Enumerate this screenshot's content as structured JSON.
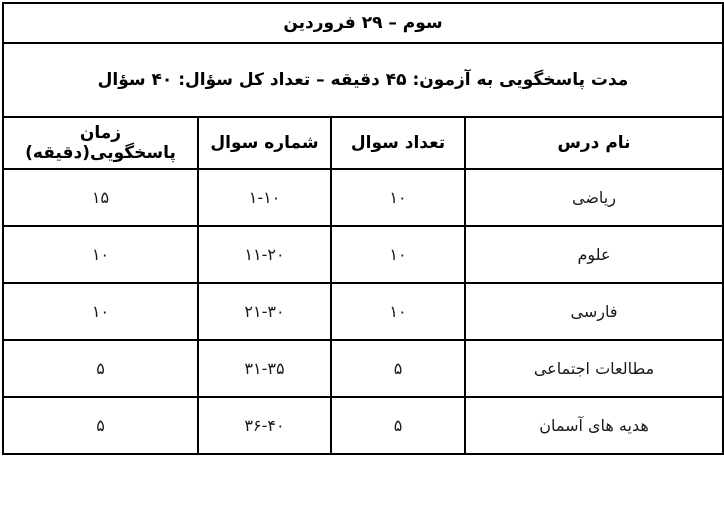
{
  "table": {
    "title": "سوم – ۲۹ فروردین",
    "subtitle": "مدت پاسخگویی به آزمون: ۴۵ دقیقه – تعداد کل سؤال: ۴۰ سؤال",
    "columns": [
      "نام درس",
      "تعداد سوال",
      "شماره سوال",
      "زمان پاسخگویی(دقیقه)"
    ],
    "rows": [
      {
        "course": "ریاضی",
        "count": "۱۰",
        "range": "۱-۱۰",
        "time": "۱۵"
      },
      {
        "course": "علوم",
        "count": "۱۰",
        "range": "۱۱-۲۰",
        "time": "۱۰"
      },
      {
        "course": "فارسی",
        "count": "۱۰",
        "range": "۲۱-۳۰",
        "time": "۱۰"
      },
      {
        "course": "مطالعات اجتماعی",
        "count": "۵",
        "range": "۳۱-۳۵",
        "time": "۵"
      },
      {
        "course": "هدیه های آسمان",
        "count": "۵",
        "range": "۳۶-۴۰",
        "time": "۵"
      }
    ]
  },
  "colors": {
    "border": "#000000",
    "text": "#000000",
    "background": "#ffffff"
  }
}
